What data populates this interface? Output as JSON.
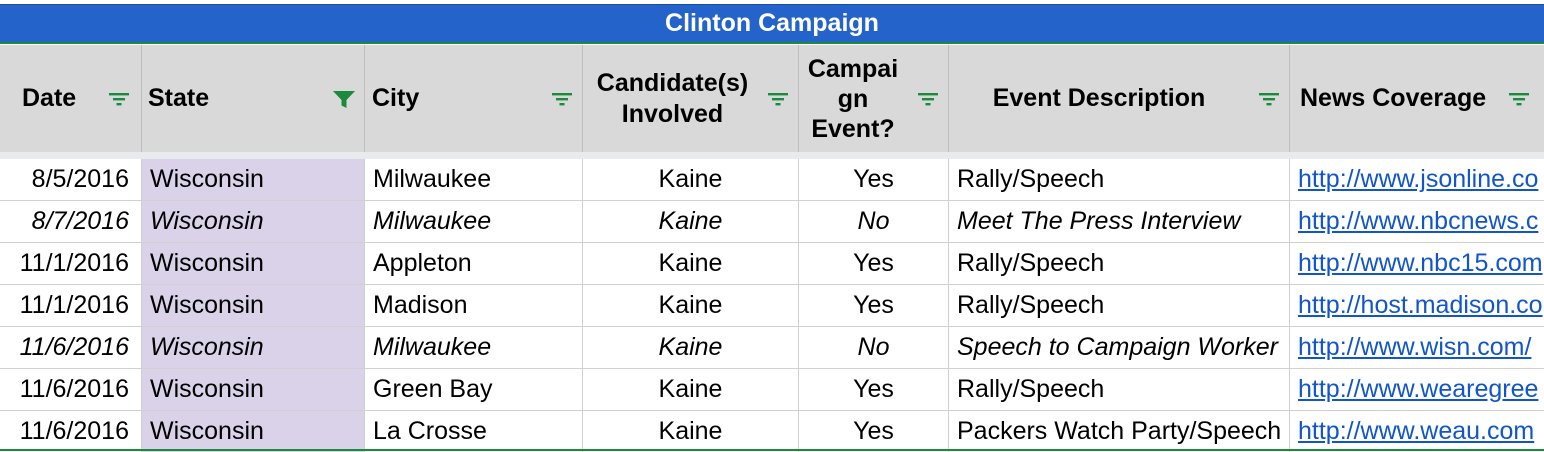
{
  "title": "Clinton Campaign",
  "columns": [
    {
      "label": "Date",
      "filter_active": false
    },
    {
      "label": "State",
      "filter_active": true
    },
    {
      "label": "City",
      "filter_active": false
    },
    {
      "label": "Candidate(s) Involved",
      "filter_active": false
    },
    {
      "label": "Campaign Event?",
      "filter_active": false
    },
    {
      "label": "Event Description",
      "filter_active": false
    },
    {
      "label": "News Coverage",
      "filter_active": false
    }
  ],
  "header_lines": {
    "candidates": [
      "Candidate(s)",
      "Involved"
    ],
    "campaign_event": [
      "Campai",
      "gn",
      "Event?"
    ]
  },
  "rows": [
    {
      "date": "8/5/2016",
      "state": "Wisconsin",
      "city": "Milwaukee",
      "candidate": "Kaine",
      "campaign_event": "Yes",
      "description": "Rally/Speech",
      "news": "http://www.jsonline.co",
      "italic": false
    },
    {
      "date": "8/7/2016",
      "state": "Wisconsin",
      "city": "Milwaukee",
      "candidate": "Kaine",
      "campaign_event": "No",
      "description": "Meet The Press Interview",
      "news": "http://www.nbcnews.c",
      "italic": true
    },
    {
      "date": "11/1/2016",
      "state": "Wisconsin",
      "city": "Appleton",
      "candidate": "Kaine",
      "campaign_event": "Yes",
      "description": "Rally/Speech",
      "news": "http://www.nbc15.com",
      "italic": false
    },
    {
      "date": "11/1/2016",
      "state": "Wisconsin",
      "city": "Madison",
      "candidate": "Kaine",
      "campaign_event": "Yes",
      "description": "Rally/Speech",
      "news": "http://host.madison.co",
      "italic": false
    },
    {
      "date": "11/6/2016",
      "state": "Wisconsin",
      "city": "Milwaukee",
      "candidate": "Kaine",
      "campaign_event": "No",
      "description": "Speech to Campaign Worker",
      "news": "http://www.wisn.com/",
      "italic": true
    },
    {
      "date": "11/6/2016",
      "state": "Wisconsin",
      "city": "Green Bay",
      "candidate": "Kaine",
      "campaign_event": "Yes",
      "description": "Rally/Speech",
      "news": "http://www.wearegree",
      "italic": false
    },
    {
      "date": "11/6/2016",
      "state": "Wisconsin",
      "city": "La Crosse",
      "candidate": "Kaine",
      "campaign_event": "Yes",
      "description": "Packers Watch Party/Speech",
      "news": "http://www.weau.com",
      "italic": false
    }
  ],
  "colors": {
    "title_bg": "#2463c9",
    "header_bg": "#d9d9d9",
    "state_bg": "#d9d2e9",
    "filter_icon": "#1c8a3c",
    "link": "#1155cc"
  },
  "icons": {
    "filter": "filter-lines-icon",
    "filter_active": "funnel-icon"
  }
}
